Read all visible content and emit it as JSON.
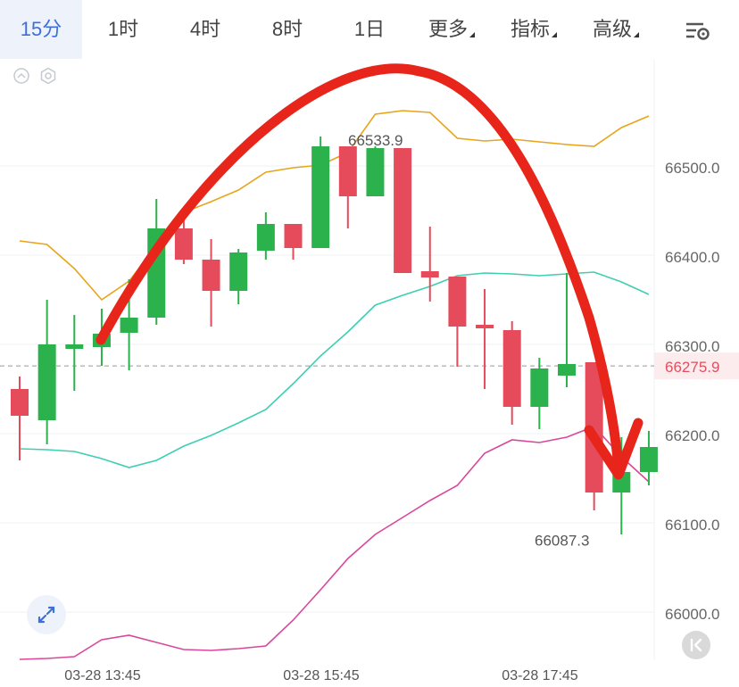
{
  "toolbar": {
    "tabs": [
      {
        "label": "15分",
        "active": true
      },
      {
        "label": "1时",
        "active": false
      },
      {
        "label": "4时",
        "active": false
      },
      {
        "label": "8时",
        "active": false
      },
      {
        "label": "1日",
        "active": false
      },
      {
        "label": "更多",
        "active": false,
        "dropdown": true
      },
      {
        "label": "指标",
        "active": false,
        "dropdown": true
      },
      {
        "label": "高级",
        "active": false,
        "dropdown": true
      }
    ],
    "settings_icon": "chart-settings-icon"
  },
  "colors": {
    "up": "#2bb24c",
    "down": "#e54b5b",
    "boll_upper": "#e8a41a",
    "boll_mid": "#3ecfb0",
    "boll_lower": "#d9479b",
    "arrow": "#e8251a",
    "accent": "#3e6fd8",
    "price_tag": "#e05060"
  },
  "chart_data": {
    "type": "candlestick",
    "ylim": [
      65940,
      66620
    ],
    "y_ticks": [
      "66500.0",
      "66400.0",
      "66300.0",
      "66200.0",
      "66100.0",
      "66000.0"
    ],
    "x_ticks": [
      "03-28 13:45",
      "03-28 15:45",
      "03-28 17:45"
    ],
    "current_price": "66275.9",
    "max_label": "66533.9",
    "min_label": "66087.3",
    "candles": [
      {
        "o": 66250,
        "h": 66264,
        "l": 66170,
        "c": 66220
      },
      {
        "o": 66215,
        "h": 66350,
        "l": 66188,
        "c": 66300
      },
      {
        "o": 66295,
        "h": 66333,
        "l": 66248,
        "c": 66300
      },
      {
        "o": 66297,
        "h": 66340,
        "l": 66276,
        "c": 66312
      },
      {
        "o": 66313,
        "h": 66373,
        "l": 66271,
        "c": 66330
      },
      {
        "o": 66330,
        "h": 66463,
        "l": 66322,
        "c": 66430
      },
      {
        "o": 66430,
        "h": 66447,
        "l": 66390,
        "c": 66395
      },
      {
        "o": 66395,
        "h": 66418,
        "l": 66320,
        "c": 66360
      },
      {
        "o": 66360,
        "h": 66407,
        "l": 66345,
        "c": 66403
      },
      {
        "o": 66405,
        "h": 66448,
        "l": 66395,
        "c": 66435
      },
      {
        "o": 66435,
        "h": 66435,
        "l": 66395,
        "c": 66408
      },
      {
        "o": 66408,
        "h": 66533,
        "l": 66408,
        "c": 66522
      },
      {
        "o": 66522,
        "h": 66522,
        "l": 66430,
        "c": 66466
      },
      {
        "o": 66466,
        "h": 66522,
        "l": 66466,
        "c": 66520
      },
      {
        "o": 66520,
        "h": 66520,
        "l": 66380,
        "c": 66380
      },
      {
        "o": 66382,
        "h": 66432,
        "l": 66348,
        "c": 66375
      },
      {
        "o": 66376,
        "h": 66376,
        "l": 66275,
        "c": 66320
      },
      {
        "o": 66322,
        "h": 66362,
        "l": 66250,
        "c": 66318
      },
      {
        "o": 66316,
        "h": 66326,
        "l": 66210,
        "c": 66230
      },
      {
        "o": 66230,
        "h": 66285,
        "l": 66205,
        "c": 66273
      },
      {
        "o": 66265,
        "h": 66380,
        "l": 66252,
        "c": 66278
      },
      {
        "o": 66280,
        "h": 66280,
        "l": 66114,
        "c": 66134
      },
      {
        "o": 66134,
        "h": 66196,
        "l": 66087,
        "c": 66157
      },
      {
        "o": 66157,
        "h": 66203,
        "l": 66142,
        "c": 66185
      }
    ],
    "series": [
      {
        "kind": "upper",
        "values": [
          66416,
          66412,
          66385,
          66350,
          66371,
          66410,
          66448,
          66460,
          66473,
          66493,
          66498,
          66501,
          66515,
          66558,
          66562,
          66560,
          66531,
          66528,
          66530,
          66527,
          66524,
          66522,
          66543,
          66556
        ]
      },
      {
        "kind": "middle",
        "values": [
          66183,
          66182,
          66180,
          66172,
          66162,
          66170,
          66186,
          66198,
          66212,
          66227,
          66256,
          66287,
          66314,
          66344,
          66355,
          66365,
          66377,
          66380,
          66379,
          66377,
          66379,
          66381,
          66370,
          66356
        ]
      },
      {
        "kind": "lower",
        "values": [
          65947,
          65948,
          65950,
          65969,
          65974,
          65966,
          65958,
          65957,
          65959,
          65962,
          65991,
          66025,
          66060,
          66087,
          66106,
          66125,
          66142,
          66178,
          66193,
          66190,
          66196,
          66208,
          66174,
          66146
        ]
      }
    ]
  },
  "controls": {
    "expand_icon": "expand-icon",
    "collapse_icon": "collapse-left-icon",
    "eye_icon": "eye-toggle-icon",
    "hexagon_icon": "hexagon-settings-icon"
  }
}
